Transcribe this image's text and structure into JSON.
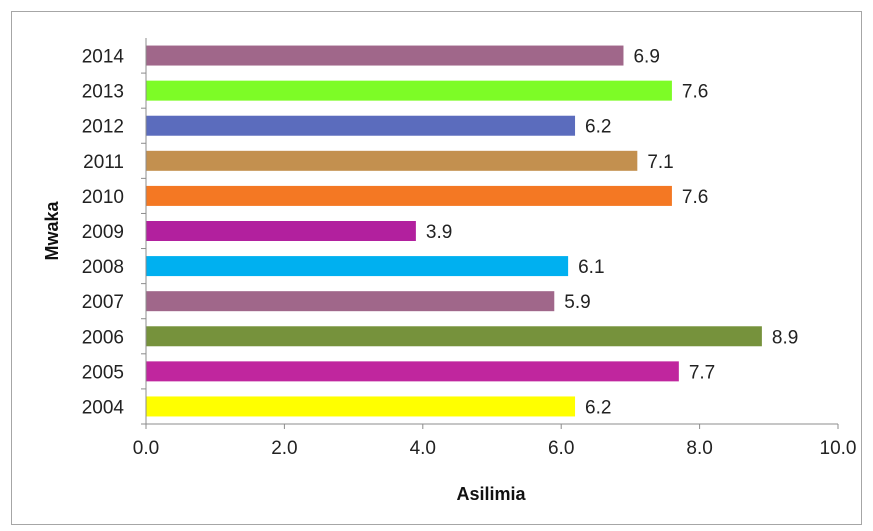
{
  "chart_data": {
    "type": "bar",
    "orientation": "horizontal",
    "categories": [
      "2004",
      "2005",
      "2006",
      "2007",
      "2008",
      "2009",
      "2010",
      "2011",
      "2012",
      "2013",
      "2014"
    ],
    "values": [
      6.2,
      7.7,
      8.9,
      5.9,
      6.1,
      3.9,
      7.6,
      7.1,
      6.2,
      7.6,
      6.9
    ],
    "value_labels": [
      "6.2",
      "7.7",
      "8.9",
      "5.9",
      "6.1",
      "3.9",
      "7.6",
      "7.1",
      "6.2",
      "7.6",
      "6.9"
    ],
    "colors": [
      "#ffff00",
      "#c0269e",
      "#76923c",
      "#a0678a",
      "#00b0f0",
      "#b2209e",
      "#f47823",
      "#c3904f",
      "#5b6cbd",
      "#7dfc26",
      "#a0678a"
    ],
    "xlabel": "Asilimia",
    "ylabel": "Mwaka",
    "xlim": [
      0,
      10
    ],
    "xticks": [
      0,
      2,
      4,
      6,
      8,
      10
    ],
    "xtick_labels": [
      "0.0",
      "2.0",
      "4.0",
      "6.0",
      "8.0",
      "10.0"
    ],
    "grid": false,
    "legend": "none"
  }
}
